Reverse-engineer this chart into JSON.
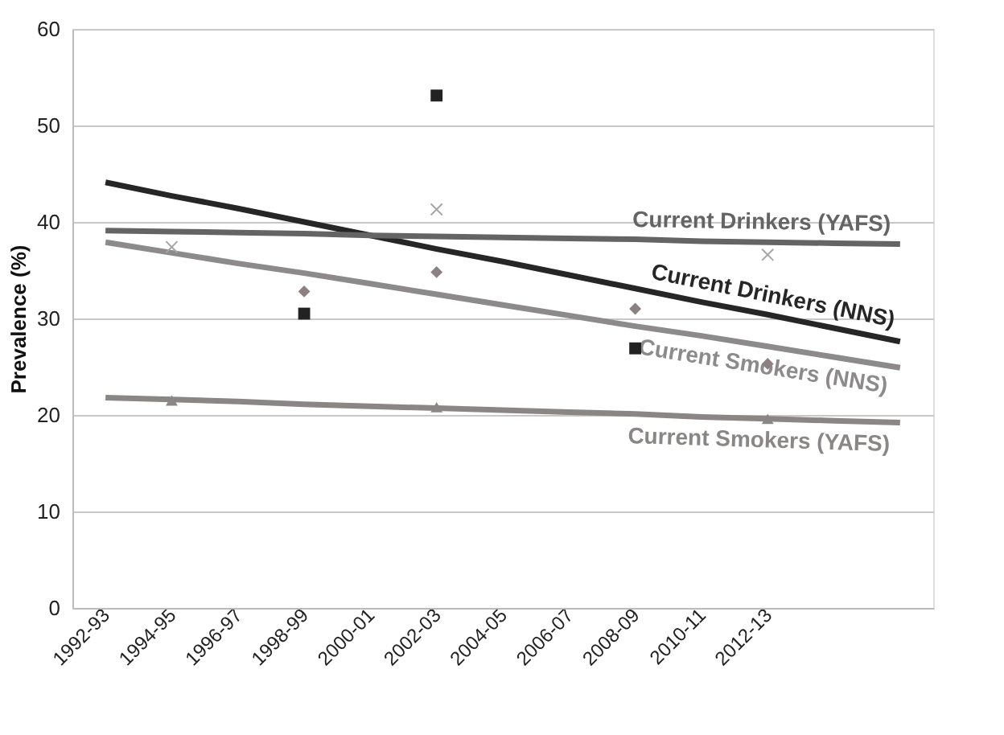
{
  "chart_data": {
    "type": "scatter",
    "ylabel": "Prevalence (%)",
    "categories": [
      "1992-93",
      "1994-95",
      "1996-97",
      "1998-99",
      "2000-01",
      "2002-03",
      "2004-05",
      "2006-07",
      "2008-09",
      "2010-11",
      "2012-13",
      null,
      null
    ],
    "ylim": [
      0,
      60
    ],
    "yticks": [
      0,
      10,
      20,
      30,
      40,
      50,
      60
    ],
    "grid": "y",
    "series": [
      {
        "marker": "square",
        "color": "#222222",
        "values": [
          null,
          null,
          null,
          30.5,
          null,
          53.1,
          null,
          null,
          26.9,
          null,
          null,
          null,
          null
        ]
      },
      {
        "marker": "cross",
        "color": "#a6a6a6",
        "values": [
          null,
          37.4,
          null,
          null,
          null,
          41.3,
          null,
          null,
          null,
          null,
          36.6,
          null,
          null
        ]
      },
      {
        "marker": "diamond",
        "color": "#8c8080",
        "values": [
          null,
          null,
          null,
          32.8,
          null,
          34.8,
          null,
          null,
          31.0,
          null,
          25.3,
          null,
          null
        ]
      },
      {
        "marker": "triangle",
        "color": "#8a8686",
        "values": [
          null,
          21.5,
          null,
          null,
          null,
          20.8,
          null,
          null,
          null,
          null,
          19.6,
          null,
          null
        ]
      },
      {
        "type": "line",
        "name": "Current Drinkers (NNS)",
        "color": "#262626",
        "values": [
          44.1,
          42.7,
          41.4,
          40.0,
          38.6,
          37.2,
          35.9,
          34.5,
          33.1,
          31.7,
          30.4,
          29.0,
          27.6
        ]
      },
      {
        "type": "line",
        "name": "Current Drinkers (YAFS)",
        "color": "#646464",
        "values": [
          39.1,
          39.0,
          38.9,
          38.8,
          38.6,
          38.5,
          38.4,
          38.3,
          38.2,
          38.0,
          37.9,
          37.8,
          37.7
        ]
      },
      {
        "type": "line",
        "name": "Current Smokers (NNS)",
        "color": "#8c8a8a",
        "values": [
          37.9,
          36.8,
          35.7,
          34.7,
          33.6,
          32.5,
          31.4,
          30.3,
          29.2,
          28.2,
          27.1,
          26.0,
          24.9
        ]
      },
      {
        "type": "line",
        "name": "Current Smokers (YAFS)",
        "color": "#8a8686",
        "values": [
          21.8,
          21.6,
          21.4,
          21.1,
          20.9,
          20.7,
          20.5,
          20.3,
          20.1,
          19.8,
          19.6,
          19.4,
          19.2
        ]
      }
    ]
  }
}
